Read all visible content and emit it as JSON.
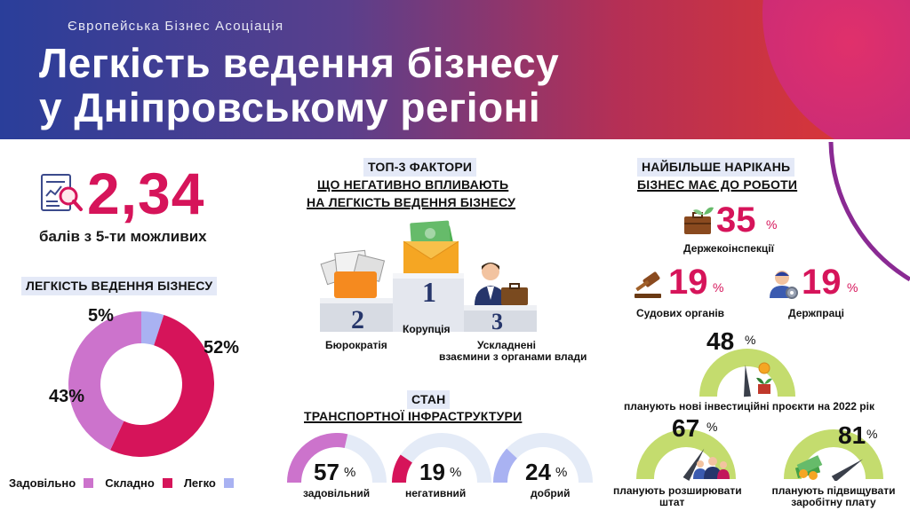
{
  "header": {
    "organization": "Європейська Бізнес Асоціація",
    "title_line1": "Легкість ведення бізнесу",
    "title_line2": "у Дніпровському регіоні"
  },
  "score": {
    "value": "2,34",
    "caption": "балів з 5-ти можливих",
    "icon": "report-magnifier-icon"
  },
  "ease": {
    "heading": "ЛЕГКІСТЬ ВЕДЕННЯ БІЗНЕСУ",
    "chart_data": {
      "type": "pie",
      "title": "ЛЕГКІСТЬ ВЕДЕННЯ БІЗНЕСУ",
      "categories": [
        "Задовільно",
        "Складно",
        "Легко"
      ],
      "values": [
        43,
        52,
        5
      ],
      "labels": [
        "43%",
        "52%",
        "5%"
      ],
      "colors": [
        "#cc73cc",
        "#d6145a",
        "#a9b2f2"
      ],
      "legend": "bottom"
    },
    "legend": [
      {
        "label": "Задовільно",
        "color": "#cc73cc"
      },
      {
        "label": "Складно",
        "color": "#d6145a"
      },
      {
        "label": "Легко",
        "color": "#a9b2f2"
      }
    ]
  },
  "top3": {
    "tag": "ТОП-3 ФАКТОРИ",
    "line1": "ЩО НЕГАТИВНО ВПЛИВАЮТЬ",
    "line2": "НА ЛЕГКІСТЬ ВЕДЕННЯ БІЗНЕСУ",
    "places": [
      {
        "rank": "1",
        "label": "Корупція",
        "icon": "money-envelope-icon"
      },
      {
        "rank": "2",
        "label": "Бюрократія",
        "icon": "paper-folder-icon"
      },
      {
        "rank": "3",
        "label_line1": "Ускладнені",
        "label_line2": "взаємини з органами влади",
        "icon": "businessman-briefcase-icon"
      }
    ]
  },
  "complaints": {
    "tag": "НАЙБІЛЬШЕ НАРІКАНЬ",
    "line2": "БІЗНЕС МАЄ ДО РОБОТИ",
    "items": [
      {
        "value": "35",
        "pct": "%",
        "label": "Держекоінспекції",
        "icon": "eco-briefcase-icon"
      },
      {
        "value": "19",
        "pct": "%",
        "label": "Судових органів",
        "icon": "gavel-icon"
      },
      {
        "value": "19",
        "pct": "%",
        "label": "Держпраці",
        "icon": "worker-gear-icon"
      }
    ]
  },
  "plans": [
    {
      "value": "48",
      "pct": "%",
      "fraction": 0.48,
      "caption": "планують нові інвестиційні проєкти на 2022 рік",
      "icon": "plant-coin-icon"
    },
    {
      "value": "67",
      "pct": "%",
      "fraction": 0.67,
      "caption_line1": "планують розширювати",
      "caption_line2": "штат",
      "icon": "team-icon"
    },
    {
      "value": "81",
      "pct": "%",
      "fraction": 0.81,
      "caption_line1": "планують підвищувати",
      "caption_line2": "заробітну плату",
      "icon": "money-stack-icon"
    }
  ],
  "transport": {
    "tag": "СТАН",
    "line2": "ТРАНСПОРТНОЇ ІНФРАСТРУКТУРИ",
    "items": [
      {
        "value": "57",
        "pct": "%",
        "fraction": 0.57,
        "label": "задовільний",
        "color": "#cc73cc"
      },
      {
        "value": "19",
        "pct": "%",
        "fraction": 0.19,
        "label": "негативний",
        "color": "#d6145a"
      },
      {
        "value": "24",
        "pct": "%",
        "fraction": 0.24,
        "label": "добрий",
        "color": "#a9b2f2"
      }
    ]
  }
}
